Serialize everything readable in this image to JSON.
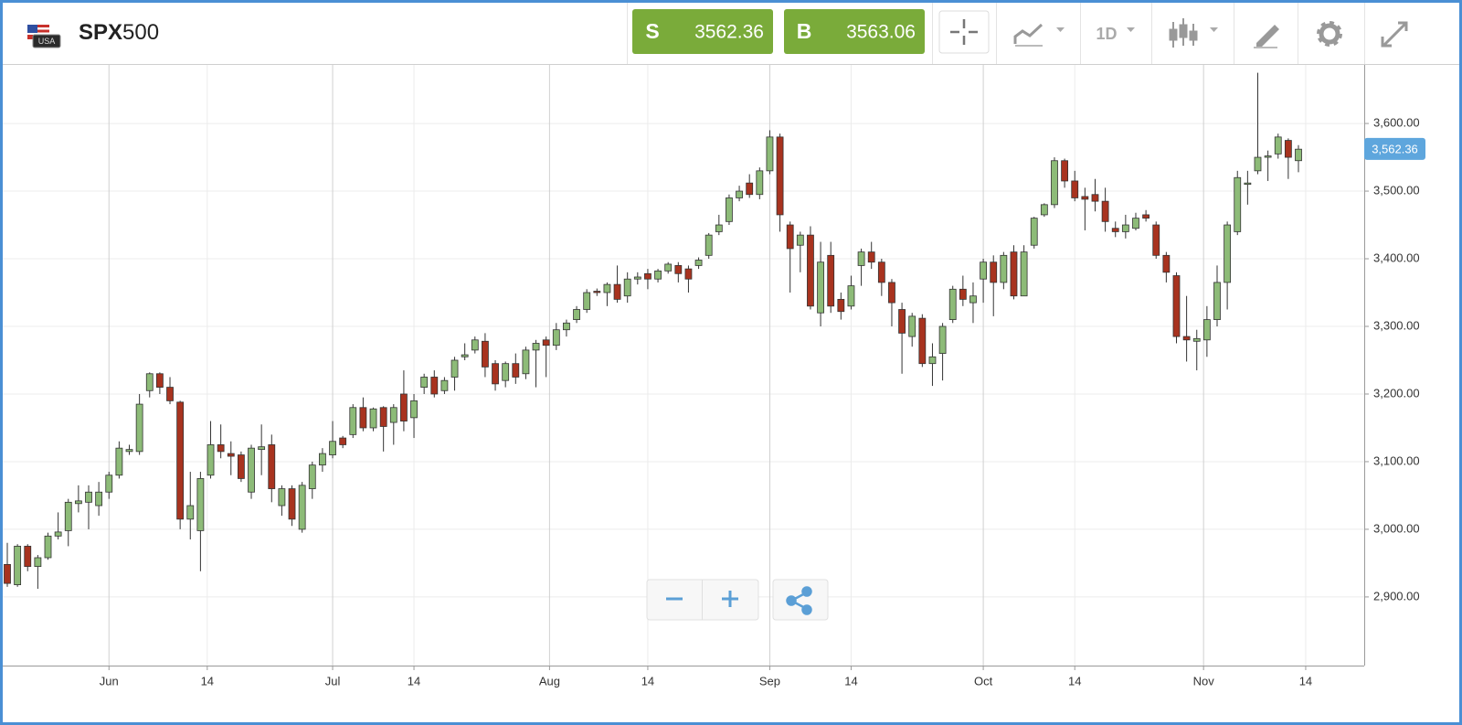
{
  "flag_label": "USA",
  "symbol": {
    "name": "SPX",
    "suffix": "500"
  },
  "sell": {
    "letter": "S",
    "price": 3562.36
  },
  "buy": {
    "letter": "B",
    "price": 3563.06
  },
  "timeframe": "1D",
  "chart_data": {
    "type": "candlestick",
    "up_color": "#8dbb78",
    "down_color": "#a8331f",
    "grid": true,
    "current_price": {
      "value": 3562.36,
      "label": "3,562.36"
    },
    "ylim": [
      2798.5,
      3686.6
    ],
    "yticks": [
      {
        "value": 2900,
        "label": "2,900.00"
      },
      {
        "value": 3000,
        "label": "3,000.00"
      },
      {
        "value": 3100,
        "label": "3,100.00"
      },
      {
        "value": 3200,
        "label": "3,200.00"
      },
      {
        "value": 3300,
        "label": "3,300.00"
      },
      {
        "value": 3400,
        "label": "3,400.00"
      },
      {
        "value": 3500,
        "label": "3,500.00"
      },
      {
        "value": 3600,
        "label": "3,600.00"
      }
    ],
    "xticks": [
      {
        "value": "06-01",
        "label": "Jun"
      },
      {
        "value": "06-14",
        "label": "14"
      },
      {
        "value": "07-01",
        "label": "Jul"
      },
      {
        "value": "07-14",
        "label": "14"
      },
      {
        "value": "08-01",
        "label": "Aug"
      },
      {
        "value": "08-14",
        "label": "14"
      },
      {
        "value": "09-01",
        "label": "Sep"
      },
      {
        "value": "09-14",
        "label": "14"
      },
      {
        "value": "10-01",
        "label": "Oct"
      },
      {
        "value": "10-14",
        "label": "14"
      },
      {
        "value": "11-01",
        "label": "Nov"
      },
      {
        "value": "11-14",
        "label": "14"
      }
    ],
    "x": [
      "05-15",
      "05-18",
      "05-19",
      "05-20",
      "05-21",
      "05-22",
      "05-26",
      "05-27",
      "05-28",
      "05-29",
      "06-01",
      "06-02",
      "06-03",
      "06-04",
      "06-05",
      "06-08",
      "06-09",
      "06-10",
      "06-11",
      "06-12",
      "06-15",
      "06-16",
      "06-17",
      "06-18",
      "06-19",
      "06-22",
      "06-23",
      "06-24",
      "06-25",
      "06-26",
      "06-29",
      "06-30",
      "07-01",
      "07-02",
      "07-06",
      "07-07",
      "07-08",
      "07-09",
      "07-10",
      "07-13",
      "07-14",
      "07-15",
      "07-16",
      "07-17",
      "07-20",
      "07-21",
      "07-22",
      "07-23",
      "07-24",
      "07-27",
      "07-28",
      "07-29",
      "07-30",
      "07-31",
      "08-03",
      "08-04",
      "08-05",
      "08-06",
      "08-07",
      "08-10",
      "08-11",
      "08-12",
      "08-13",
      "08-14",
      "08-17",
      "08-18",
      "08-19",
      "08-20",
      "08-21",
      "08-24",
      "08-25",
      "08-26",
      "08-27",
      "08-28",
      "08-31",
      "09-01",
      "09-02",
      "09-03",
      "09-04",
      "09-08",
      "09-09",
      "09-10",
      "09-11",
      "09-14",
      "09-15",
      "09-16",
      "09-17",
      "09-18",
      "09-21",
      "09-22",
      "09-23",
      "09-24",
      "09-25",
      "09-28",
      "09-29",
      "09-30",
      "10-01",
      "10-02",
      "10-05",
      "10-06",
      "10-07",
      "10-08",
      "10-09",
      "10-12",
      "10-13",
      "10-14",
      "10-15",
      "10-16",
      "10-19",
      "10-20",
      "10-21",
      "10-22",
      "10-23",
      "10-26",
      "10-27",
      "10-28",
      "10-29",
      "10-30",
      "11-02",
      "11-03",
      "11-04",
      "11-05",
      "11-06",
      "11-09",
      "11-10",
      "11-11",
      "11-12",
      "11-13"
    ],
    "open": [
      2948,
      2918,
      2975,
      2945,
      2958,
      2990,
      2998,
      3038,
      3040,
      3035,
      3055,
      3080,
      3115,
      3115,
      3205,
      3230,
      3210,
      3188,
      3015,
      2998,
      3080,
      3125,
      3112,
      3110,
      3055,
      3118,
      3125,
      3035,
      3060,
      3000,
      3060,
      3095,
      3110,
      3135,
      3140,
      3180,
      3150,
      3180,
      3158,
      3200,
      3165,
      3210,
      3225,
      3205,
      3225,
      3255,
      3265,
      3278,
      3245,
      3220,
      3245,
      3230,
      3265,
      3280,
      3272,
      3295,
      3310,
      3325,
      3352,
      3350,
      3362,
      3345,
      3370,
      3378,
      3370,
      3382,
      3390,
      3385,
      3390,
      3405,
      3440,
      3455,
      3490,
      3512,
      3495,
      3530,
      3580,
      3450,
      3420,
      3435,
      3320,
      3405,
      3340,
      3330,
      3390,
      3410,
      3395,
      3365,
      3325,
      3285,
      3312,
      3245,
      3260,
      3310,
      3355,
      3335,
      3370,
      3395,
      3365,
      3410,
      3345,
      3420,
      3465,
      3480,
      3545,
      3515,
      3492,
      3495,
      3485,
      3445,
      3440,
      3445,
      3465,
      3450,
      3405,
      3375,
      3285,
      3278,
      3280,
      3310,
      3365,
      3440,
      3510,
      3530,
      3550,
      3555,
      3575,
      3545
    ],
    "high": [
      2980,
      2978,
      2978,
      2962,
      2995,
      3025,
      3045,
      3065,
      3065,
      3070,
      3085,
      3130,
      3125,
      3200,
      3232,
      3232,
      3225,
      3190,
      3085,
      3085,
      3160,
      3155,
      3130,
      3115,
      3125,
      3155,
      3140,
      3065,
      3065,
      3070,
      3100,
      3120,
      3160,
      3138,
      3185,
      3195,
      3180,
      3182,
      3185,
      3235,
      3200,
      3230,
      3235,
      3225,
      3255,
      3275,
      3285,
      3290,
      3250,
      3248,
      3260,
      3270,
      3280,
      3285,
      3305,
      3310,
      3330,
      3355,
      3356,
      3365,
      3390,
      3380,
      3380,
      3385,
      3385,
      3395,
      3395,
      3390,
      3402,
      3438,
      3465,
      3495,
      3508,
      3525,
      3535,
      3590,
      3585,
      3455,
      3440,
      3448,
      3425,
      3425,
      3350,
      3375,
      3415,
      3425,
      3400,
      3370,
      3335,
      3320,
      3318,
      3275,
      3305,
      3360,
      3375,
      3365,
      3400,
      3405,
      3410,
      3420,
      3420,
      3462,
      3482,
      3550,
      3548,
      3530,
      3505,
      3518,
      3505,
      3455,
      3465,
      3468,
      3472,
      3455,
      3410,
      3380,
      3345,
      3295,
      3330,
      3390,
      3455,
      3530,
      3530,
      3675,
      3560,
      3585,
      3578,
      3568
    ],
    "low": [
      2915,
      2915,
      2938,
      2912,
      2955,
      2985,
      2975,
      3025,
      3000,
      3020,
      3045,
      3075,
      3110,
      3110,
      3195,
      3200,
      3185,
      3000,
      2985,
      2938,
      3075,
      3105,
      3080,
      3070,
      3045,
      3080,
      3040,
      3020,
      3005,
      2995,
      3045,
      3085,
      3105,
      3120,
      3135,
      3145,
      3145,
      3115,
      3125,
      3145,
      3135,
      3200,
      3195,
      3200,
      3205,
      3250,
      3260,
      3225,
      3205,
      3210,
      3215,
      3222,
      3210,
      3225,
      3265,
      3285,
      3305,
      3320,
      3345,
      3330,
      3335,
      3335,
      3362,
      3355,
      3365,
      3378,
      3365,
      3350,
      3385,
      3400,
      3435,
      3450,
      3485,
      3490,
      3488,
      3525,
      3440,
      3350,
      3380,
      3325,
      3300,
      3320,
      3310,
      3325,
      3360,
      3385,
      3345,
      3300,
      3230,
      3270,
      3240,
      3212,
      3220,
      3305,
      3330,
      3305,
      3335,
      3315,
      3355,
      3340,
      3345,
      3415,
      3462,
      3475,
      3505,
      3485,
      3442,
      3470,
      3440,
      3432,
      3430,
      3442,
      3455,
      3400,
      3365,
      3275,
      3248,
      3235,
      3255,
      3300,
      3325,
      3435,
      3480,
      3525,
      3515,
      3548,
      3518,
      3528
    ],
    "close": [
      2920,
      2975,
      2945,
      2958,
      2990,
      2996,
      3040,
      3042,
      3055,
      3055,
      3080,
      3120,
      3118,
      3185,
      3230,
      3210,
      3190,
      3015,
      3035,
      3075,
      3125,
      3115,
      3108,
      3075,
      3120,
      3122,
      3060,
      3060,
      3015,
      3065,
      3095,
      3112,
      3130,
      3125,
      3180,
      3150,
      3178,
      3152,
      3180,
      3160,
      3190,
      3225,
      3200,
      3220,
      3250,
      3258,
      3280,
      3240,
      3215,
      3245,
      3225,
      3265,
      3275,
      3272,
      3295,
      3305,
      3325,
      3350,
      3350,
      3362,
      3340,
      3370,
      3373,
      3370,
      3382,
      3392,
      3378,
      3370,
      3398,
      3435,
      3450,
      3490,
      3500,
      3495,
      3530,
      3580,
      3465,
      3415,
      3435,
      3330,
      3395,
      3330,
      3322,
      3360,
      3410,
      3395,
      3365,
      3335,
      3290,
      3315,
      3245,
      3255,
      3300,
      3355,
      3340,
      3345,
      3395,
      3365,
      3405,
      3345,
      3410,
      3460,
      3480,
      3545,
      3515,
      3490,
      3488,
      3485,
      3455,
      3440,
      3450,
      3460,
      3460,
      3405,
      3380,
      3285,
      3280,
      3282,
      3310,
      3365,
      3450,
      3520,
      3512,
      3550,
      3552,
      3580,
      3550,
      3562
    ]
  }
}
